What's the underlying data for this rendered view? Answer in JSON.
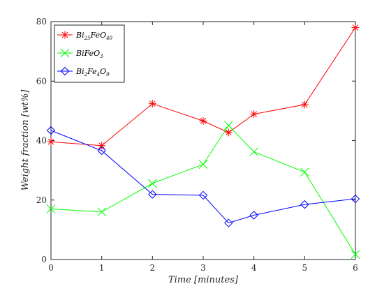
{
  "chart_data": {
    "type": "line",
    "title": "",
    "xlabel": "Time [minutes]",
    "ylabel": "Weight fraction [wt%]",
    "xlim": [
      0,
      6
    ],
    "ylim": [
      0,
      80
    ],
    "xticks": [
      0,
      1,
      2,
      3,
      4,
      5,
      6
    ],
    "yticks": [
      0,
      20,
      40,
      60,
      80
    ],
    "grid": false,
    "legend": "top-left",
    "x": [
      0,
      1,
      2,
      3,
      3.5,
      4,
      5,
      6
    ],
    "series": [
      {
        "name": "Bi25FeO40",
        "name_parts": [
          [
            "Bi",
            ""
          ],
          [
            "25",
            "sub"
          ],
          [
            "FeO",
            ""
          ],
          [
            "40",
            "sub"
          ]
        ],
        "color": "#ff0000",
        "marker": "asterisk",
        "values": [
          39.6,
          38.3,
          52.4,
          46.6,
          42.7,
          48.9,
          52.1,
          78.0
        ]
      },
      {
        "name": "BiFeO3",
        "name_parts": [
          [
            "BiFeO",
            ""
          ],
          [
            "3",
            "sub"
          ]
        ],
        "color": "#00ff00",
        "marker": "x",
        "values": [
          17.0,
          16.0,
          25.6,
          32.0,
          45.1,
          36.2,
          29.4,
          1.7
        ]
      },
      {
        "name": "Bi2Fe4O9",
        "name_parts": [
          [
            "Bi",
            ""
          ],
          [
            "2",
            "sub"
          ],
          [
            "Fe",
            ""
          ],
          [
            "4",
            "sub"
          ],
          [
            "O",
            ""
          ],
          [
            "9",
            "sub"
          ]
        ],
        "color": "#0000ff",
        "marker": "diamond",
        "values": [
          43.4,
          36.6,
          21.9,
          21.6,
          12.3,
          14.9,
          18.5,
          20.4
        ]
      }
    ]
  }
}
